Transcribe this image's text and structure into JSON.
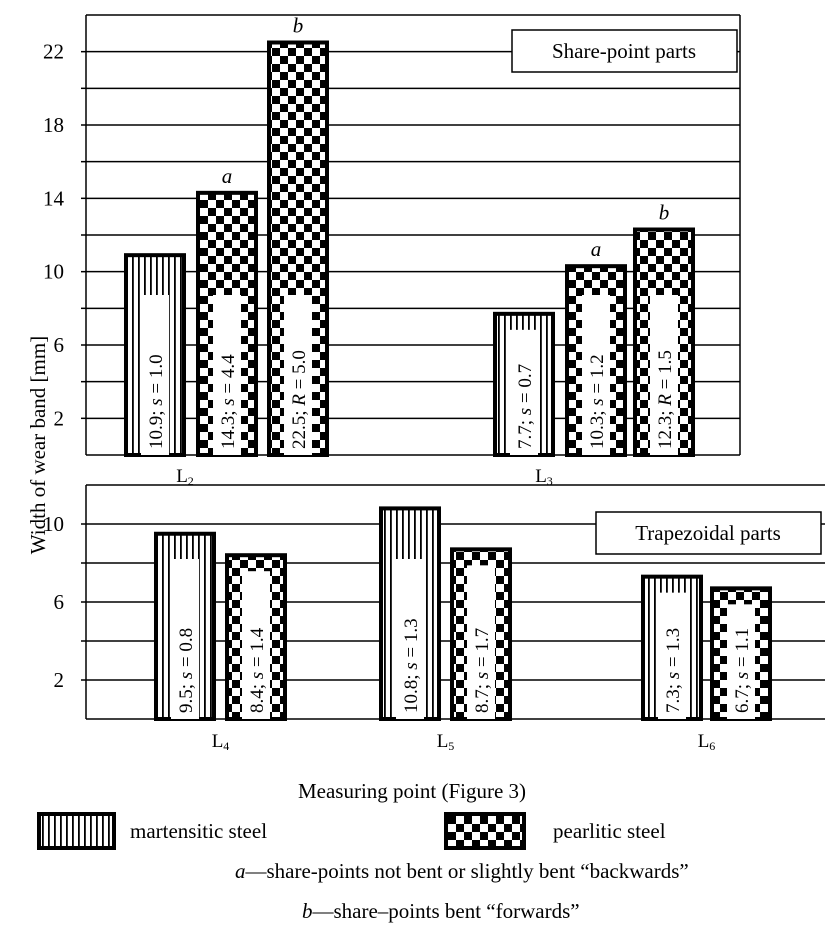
{
  "chart_data": [
    {
      "type": "bar",
      "panel": "top",
      "box_label": "Share-point parts",
      "categories": [
        "L2",
        "L3"
      ],
      "category_labels": [
        {
          "main": "L",
          "sub": "2"
        },
        {
          "main": "L",
          "sub": "3"
        }
      ],
      "ylim": [
        0,
        24
      ],
      "y_ticks": [
        2,
        6,
        10,
        14,
        18,
        22
      ],
      "grid": true,
      "series": [
        {
          "name": "martensitic steel",
          "pattern": "vertical-stripes",
          "values": [
            10.9,
            7.7
          ]
        },
        {
          "name": "pearlitic steel (a)",
          "pattern": "checkerboard",
          "values": [
            14.3,
            10.3
          ]
        },
        {
          "name": "pearlitic steel (b)",
          "pattern": "checkerboard",
          "values": [
            22.5,
            12.3
          ]
        }
      ],
      "bar_labels": [
        [
          "10.9; s = 1.0",
          "7.7; s = 0.7"
        ],
        [
          "14.3; s = 4.4",
          "10.3; s = 1.2"
        ],
        [
          "22.5; R = 5.0",
          "12.3; R = 1.5"
        ]
      ],
      "bar_top_letters": [
        [
          "",
          ""
        ],
        [
          "a",
          "a"
        ],
        [
          "b",
          "b"
        ]
      ]
    },
    {
      "type": "bar",
      "panel": "bottom",
      "box_label": "Trapezoidal parts",
      "categories": [
        "L4",
        "L5",
        "L6"
      ],
      "category_labels": [
        {
          "main": "L",
          "sub": "4"
        },
        {
          "main": "L",
          "sub": "5"
        },
        {
          "main": "L",
          "sub": "6"
        }
      ],
      "ylim": [
        0,
        12
      ],
      "y_ticks": [
        2,
        6,
        10
      ],
      "grid": true,
      "series": [
        {
          "name": "martensitic steel",
          "pattern": "vertical-stripes",
          "values": [
            9.5,
            10.8,
            7.3
          ]
        },
        {
          "name": "pearlitic steel",
          "pattern": "checkerboard",
          "values": [
            8.4,
            8.7,
            6.7
          ]
        }
      ],
      "bar_labels": [
        [
          "9.5; s = 0.8",
          "10.8; s = 1.3",
          "7.3; s = 1.3"
        ],
        [
          "8.4; s = 1.4",
          "8.7; s = 1.7",
          "6.7; s = 1.1"
        ]
      ]
    }
  ],
  "axes": {
    "ylabel": "Width of wear band [mm]",
    "xlabel": "Measuring point (Figure 3)"
  },
  "legend": {
    "martensitic_label": "martensitic steel",
    "pearlitic_label": "pearlitic steel",
    "note_a_letter": "a",
    "note_a_text": "—share-points not bent or slightly bent “backwards”",
    "note_b_letter": "b",
    "note_b_text": "—share–points bent “forwards”"
  },
  "colors": {
    "ink": "#000000",
    "background": "#ffffff"
  }
}
